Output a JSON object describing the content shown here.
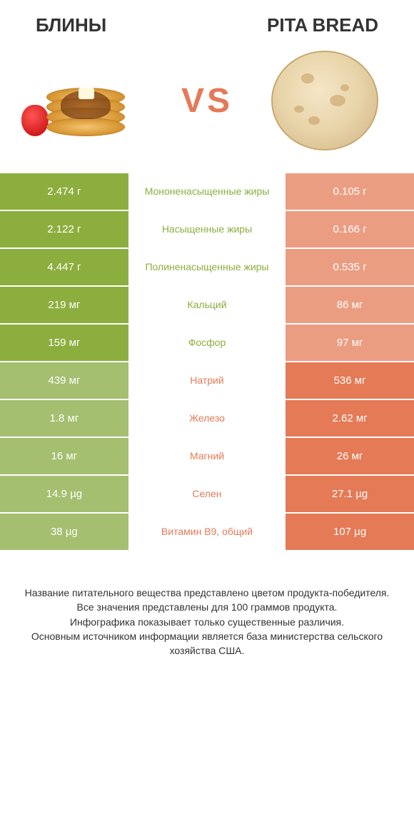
{
  "header": {
    "left": "БЛИНЫ",
    "right": "PITA BREAD"
  },
  "vs": {
    "text": "VS",
    "color": "#e47a56"
  },
  "colors": {
    "winner_left": "#8cae3e",
    "loser_left": "#a4bf6f",
    "winner_right": "#e47a56",
    "loser_right": "#eb9d82",
    "mid_text_left": "#8cae3e",
    "mid_text_right": "#e47a56",
    "row_border": "#ffffff"
  },
  "rows": [
    {
      "label": "Мононенасыщенные жиры",
      "left": "2.474 г",
      "right": "0.105 г",
      "winner": "left"
    },
    {
      "label": "Насыщенные жиры",
      "left": "2.122 г",
      "right": "0.166 г",
      "winner": "left"
    },
    {
      "label": "Полиненасыщенные жиры",
      "left": "4.447 г",
      "right": "0.535 г",
      "winner": "left"
    },
    {
      "label": "Кальций",
      "left": "219 мг",
      "right": "86 мг",
      "winner": "left"
    },
    {
      "label": "Фосфор",
      "left": "159 мг",
      "right": "97 мг",
      "winner": "left"
    },
    {
      "label": "Натрий",
      "left": "439 мг",
      "right": "536 мг",
      "winner": "right"
    },
    {
      "label": "Железо",
      "left": "1.8 мг",
      "right": "2.62 мг",
      "winner": "right"
    },
    {
      "label": "Магний",
      "left": "16 мг",
      "right": "26 мг",
      "winner": "right"
    },
    {
      "label": "Селен",
      "left": "14.9 µg",
      "right": "27.1 µg",
      "winner": "right"
    },
    {
      "label": "Витамин B9, общий",
      "left": "38 µg",
      "right": "107 µg",
      "winner": "right"
    }
  ],
  "footer": {
    "line1": "Название питательного вещества представлено цветом продукта-победителя.",
    "line2": "Все значения представлены для 100 граммов продукта.",
    "line3": "Инфографика показывает только существенные различия.",
    "line4": "Основным источником информации является база министерства сельского хозяйства США."
  }
}
